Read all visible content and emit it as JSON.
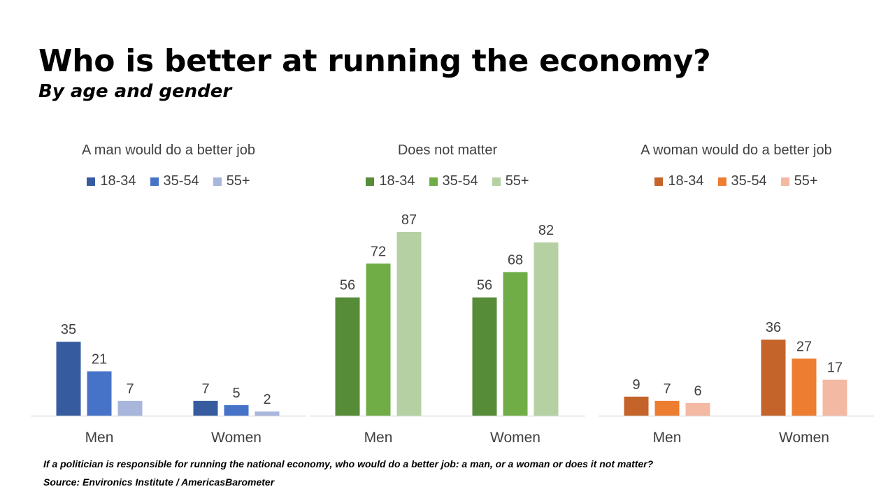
{
  "title": "Who is better at running the economy?",
  "subtitle": "By age and gender",
  "footnote": {
    "question": "If a politician is responsible for running the national economy, who would do a better job: a man, or a woman or does it not matter?",
    "source": "Source: Environics Institute / AmericasBarometer"
  },
  "chart_data": [
    {
      "type": "bar",
      "title": "A man would do a better job",
      "categories": [
        "Men",
        "Women"
      ],
      "series": [
        {
          "name": "18-34",
          "color": "#365c9f",
          "values": [
            35,
            7
          ]
        },
        {
          "name": "35-54",
          "color": "#4673c7",
          "values": [
            21,
            5
          ]
        },
        {
          "name": "55+",
          "color": "#a8b6dc",
          "values": [
            7,
            2
          ]
        }
      ],
      "ylim": [
        0,
        87
      ],
      "grid": false,
      "legend": "top"
    },
    {
      "type": "bar",
      "title": "Does not matter",
      "categories": [
        "Men",
        "Women"
      ],
      "series": [
        {
          "name": "18-34",
          "color": "#568b38",
          "values": [
            56,
            56
          ]
        },
        {
          "name": "35-54",
          "color": "#70ad47",
          "values": [
            72,
            68
          ]
        },
        {
          "name": "55+",
          "color": "#b5d1a3",
          "values": [
            87,
            82
          ]
        }
      ],
      "ylim": [
        0,
        87
      ],
      "grid": false,
      "legend": "top"
    },
    {
      "type": "bar",
      "title": "A woman would do a better job",
      "categories": [
        "Men",
        "Women"
      ],
      "series": [
        {
          "name": "18-34",
          "color": "#c4642a",
          "values": [
            9,
            36
          ]
        },
        {
          "name": "35-54",
          "color": "#ed7d31",
          "values": [
            7,
            27
          ]
        },
        {
          "name": "55+",
          "color": "#f4b9a2",
          "values": [
            6,
            17
          ]
        }
      ],
      "ylim": [
        0,
        87
      ],
      "grid": false,
      "legend": "top"
    }
  ]
}
